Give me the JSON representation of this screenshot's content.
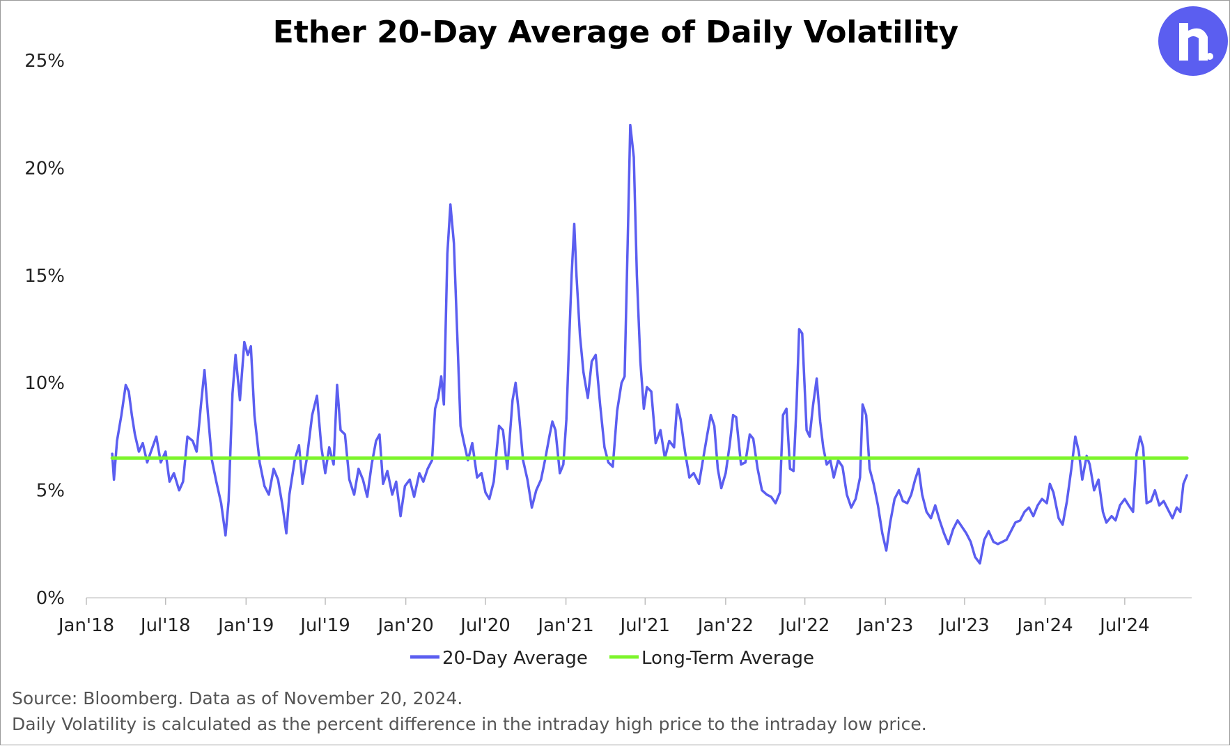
{
  "notes": {
    "source": "Source: Bloomberg. Data as of November 20, 2024.",
    "definition": "Daily Volatility is calculated as the percent difference in the intraday high price to the intraday low price."
  },
  "logo": {
    "icon": "r-letter-logo-icon",
    "color": "#5b5ef0"
  },
  "chart_data": {
    "type": "line",
    "title": "Ether 20-Day Average of Daily Volatility",
    "xlabel": "",
    "ylabel": "",
    "ylim": [
      0,
      25
    ],
    "yticks": [
      "0%",
      "5%",
      "10%",
      "15%",
      "20%",
      "25%"
    ],
    "xticks": [
      "Jan'18",
      "Jul'18",
      "Jan'19",
      "Jul'19",
      "Jan'20",
      "Jul'20",
      "Jan'21",
      "Jul'21",
      "Jan'22",
      "Jul'22",
      "Jan'23",
      "Jul'23",
      "Jan'24",
      "Jul'24"
    ],
    "grid": false,
    "legend_position": "bottom",
    "series": [
      {
        "name": "20-Day Average",
        "color": "#5b5ef0",
        "points": [
          [
            "2018-03-01",
            6.7
          ],
          [
            "2018-03-05",
            5.5
          ],
          [
            "2018-03-12",
            7.3
          ],
          [
            "2018-03-22",
            8.5
          ],
          [
            "2018-04-01",
            9.9
          ],
          [
            "2018-04-08",
            9.6
          ],
          [
            "2018-04-15",
            8.5
          ],
          [
            "2018-04-22",
            7.6
          ],
          [
            "2018-05-01",
            6.8
          ],
          [
            "2018-05-10",
            7.2
          ],
          [
            "2018-05-20",
            6.3
          ],
          [
            "2018-06-01",
            7.0
          ],
          [
            "2018-06-10",
            7.5
          ],
          [
            "2018-06-20",
            6.3
          ],
          [
            "2018-07-01",
            6.8
          ],
          [
            "2018-07-10",
            5.4
          ],
          [
            "2018-07-20",
            5.8
          ],
          [
            "2018-08-01",
            5.0
          ],
          [
            "2018-08-10",
            5.4
          ],
          [
            "2018-08-20",
            7.5
          ],
          [
            "2018-09-01",
            7.3
          ],
          [
            "2018-09-10",
            6.8
          ],
          [
            "2018-09-20",
            9.0
          ],
          [
            "2018-09-28",
            10.6
          ],
          [
            "2018-10-06",
            8.5
          ],
          [
            "2018-10-15",
            6.4
          ],
          [
            "2018-10-25",
            5.4
          ],
          [
            "2018-11-05",
            4.4
          ],
          [
            "2018-11-15",
            2.9
          ],
          [
            "2018-11-22",
            4.5
          ],
          [
            "2018-12-01",
            9.5
          ],
          [
            "2018-12-08",
            11.3
          ],
          [
            "2018-12-18",
            9.2
          ],
          [
            "2018-12-28",
            11.9
          ],
          [
            "2019-01-05",
            11.3
          ],
          [
            "2019-01-12",
            11.7
          ],
          [
            "2019-01-20",
            8.5
          ],
          [
            "2019-02-01",
            6.3
          ],
          [
            "2019-02-12",
            5.2
          ],
          [
            "2019-02-22",
            4.8
          ],
          [
            "2019-03-05",
            6.0
          ],
          [
            "2019-03-15",
            5.5
          ],
          [
            "2019-03-25",
            4.3
          ],
          [
            "2019-04-03",
            3.0
          ],
          [
            "2019-04-10",
            4.8
          ],
          [
            "2019-04-22",
            6.4
          ],
          [
            "2019-05-02",
            7.1
          ],
          [
            "2019-05-10",
            5.3
          ],
          [
            "2019-05-20",
            6.5
          ],
          [
            "2019-06-01",
            8.5
          ],
          [
            "2019-06-12",
            9.4
          ],
          [
            "2019-06-22",
            7.0
          ],
          [
            "2019-07-01",
            5.8
          ],
          [
            "2019-07-10",
            7.0
          ],
          [
            "2019-07-20",
            6.2
          ],
          [
            "2019-07-28",
            9.9
          ],
          [
            "2019-08-05",
            7.8
          ],
          [
            "2019-08-15",
            7.6
          ],
          [
            "2019-08-25",
            5.5
          ],
          [
            "2019-09-05",
            4.8
          ],
          [
            "2019-09-15",
            6.0
          ],
          [
            "2019-09-25",
            5.5
          ],
          [
            "2019-10-05",
            4.7
          ],
          [
            "2019-10-15",
            6.2
          ],
          [
            "2019-10-25",
            7.3
          ],
          [
            "2019-11-02",
            7.6
          ],
          [
            "2019-11-10",
            5.3
          ],
          [
            "2019-11-20",
            5.9
          ],
          [
            "2019-12-01",
            4.8
          ],
          [
            "2019-12-10",
            5.4
          ],
          [
            "2019-12-20",
            3.8
          ],
          [
            "2019-12-30",
            5.2
          ],
          [
            "2020-01-10",
            5.5
          ],
          [
            "2020-01-20",
            4.7
          ],
          [
            "2020-02-01",
            5.8
          ],
          [
            "2020-02-10",
            5.4
          ],
          [
            "2020-02-20",
            6.0
          ],
          [
            "2020-03-01",
            6.4
          ],
          [
            "2020-03-08",
            8.8
          ],
          [
            "2020-03-15",
            9.3
          ],
          [
            "2020-03-22",
            10.3
          ],
          [
            "2020-03-28",
            9.0
          ],
          [
            "2020-04-05",
            16.0
          ],
          [
            "2020-04-12",
            18.3
          ],
          [
            "2020-04-20",
            16.5
          ],
          [
            "2020-04-28",
            12.0
          ],
          [
            "2020-05-05",
            8.0
          ],
          [
            "2020-05-12",
            7.3
          ],
          [
            "2020-05-22",
            6.4
          ],
          [
            "2020-06-01",
            7.2
          ],
          [
            "2020-06-12",
            5.6
          ],
          [
            "2020-06-22",
            5.8
          ],
          [
            "2020-07-01",
            4.9
          ],
          [
            "2020-07-10",
            4.6
          ],
          [
            "2020-07-20",
            5.4
          ],
          [
            "2020-08-01",
            8.0
          ],
          [
            "2020-08-10",
            7.8
          ],
          [
            "2020-08-20",
            6.0
          ],
          [
            "2020-09-01",
            9.2
          ],
          [
            "2020-09-08",
            10.0
          ],
          [
            "2020-09-15",
            8.7
          ],
          [
            "2020-09-25",
            6.4
          ],
          [
            "2020-10-05",
            5.5
          ],
          [
            "2020-10-15",
            4.2
          ],
          [
            "2020-10-25",
            5.0
          ],
          [
            "2020-11-05",
            5.5
          ],
          [
            "2020-11-15",
            6.5
          ],
          [
            "2020-11-25",
            7.6
          ],
          [
            "2020-12-01",
            8.2
          ],
          [
            "2020-12-08",
            7.8
          ],
          [
            "2020-12-18",
            5.8
          ],
          [
            "2020-12-26",
            6.2
          ],
          [
            "2021-01-02",
            8.3
          ],
          [
            "2021-01-08",
            11.8
          ],
          [
            "2021-01-14",
            15.0
          ],
          [
            "2021-01-20",
            17.4
          ],
          [
            "2021-01-25",
            15.0
          ],
          [
            "2021-02-02",
            12.2
          ],
          [
            "2021-02-10",
            10.5
          ],
          [
            "2021-02-20",
            9.3
          ],
          [
            "2021-03-01",
            11.0
          ],
          [
            "2021-03-10",
            11.3
          ],
          [
            "2021-03-20",
            9.0
          ],
          [
            "2021-03-30",
            7.0
          ],
          [
            "2021-04-08",
            6.3
          ],
          [
            "2021-04-18",
            6.1
          ],
          [
            "2021-04-28",
            8.7
          ],
          [
            "2021-05-08",
            10.0
          ],
          [
            "2021-05-15",
            10.3
          ],
          [
            "2021-05-22",
            16.5
          ],
          [
            "2021-05-28",
            22.0
          ],
          [
            "2021-06-05",
            20.5
          ],
          [
            "2021-06-12",
            15.0
          ],
          [
            "2021-06-20",
            11.0
          ],
          [
            "2021-06-28",
            8.8
          ],
          [
            "2021-07-05",
            9.8
          ],
          [
            "2021-07-15",
            9.6
          ],
          [
            "2021-07-25",
            7.2
          ],
          [
            "2021-08-05",
            7.8
          ],
          [
            "2021-08-15",
            6.5
          ],
          [
            "2021-08-25",
            7.3
          ],
          [
            "2021-09-05",
            7.0
          ],
          [
            "2021-09-12",
            9.0
          ],
          [
            "2021-09-20",
            8.3
          ],
          [
            "2021-09-30",
            6.8
          ],
          [
            "2021-10-10",
            5.6
          ],
          [
            "2021-10-20",
            5.8
          ],
          [
            "2021-11-01",
            5.3
          ],
          [
            "2021-11-10",
            6.4
          ],
          [
            "2021-11-20",
            7.6
          ],
          [
            "2021-11-28",
            8.5
          ],
          [
            "2021-12-06",
            8.0
          ],
          [
            "2021-12-14",
            6.0
          ],
          [
            "2021-12-22",
            5.1
          ],
          [
            "2022-01-01",
            5.8
          ],
          [
            "2022-01-10",
            7.1
          ],
          [
            "2022-01-18",
            8.5
          ],
          [
            "2022-01-25",
            8.4
          ],
          [
            "2022-02-05",
            6.2
          ],
          [
            "2022-02-15",
            6.3
          ],
          [
            "2022-02-25",
            7.6
          ],
          [
            "2022-03-05",
            7.4
          ],
          [
            "2022-03-15",
            6.0
          ],
          [
            "2022-03-25",
            5.0
          ],
          [
            "2022-04-05",
            4.8
          ],
          [
            "2022-04-15",
            4.7
          ],
          [
            "2022-04-25",
            4.4
          ],
          [
            "2022-05-05",
            4.9
          ],
          [
            "2022-05-12",
            8.5
          ],
          [
            "2022-05-20",
            8.8
          ],
          [
            "2022-05-28",
            6.0
          ],
          [
            "2022-06-05",
            5.9
          ],
          [
            "2022-06-12",
            9.0
          ],
          [
            "2022-06-18",
            12.5
          ],
          [
            "2022-06-25",
            12.3
          ],
          [
            "2022-07-05",
            7.8
          ],
          [
            "2022-07-12",
            7.5
          ],
          [
            "2022-07-20",
            9.0
          ],
          [
            "2022-07-28",
            10.2
          ],
          [
            "2022-08-05",
            8.2
          ],
          [
            "2022-08-12",
            7.0
          ],
          [
            "2022-08-20",
            6.2
          ],
          [
            "2022-08-28",
            6.4
          ],
          [
            "2022-09-05",
            5.6
          ],
          [
            "2022-09-15",
            6.4
          ],
          [
            "2022-09-25",
            6.1
          ],
          [
            "2022-10-05",
            4.8
          ],
          [
            "2022-10-15",
            4.2
          ],
          [
            "2022-10-25",
            4.6
          ],
          [
            "2022-11-04",
            5.6
          ],
          [
            "2022-11-10",
            9.0
          ],
          [
            "2022-11-18",
            8.5
          ],
          [
            "2022-11-26",
            6.0
          ],
          [
            "2022-12-05",
            5.3
          ],
          [
            "2022-12-15",
            4.3
          ],
          [
            "2022-12-25",
            3.0
          ],
          [
            "2023-01-03",
            2.2
          ],
          [
            "2023-01-12",
            3.5
          ],
          [
            "2023-01-22",
            4.6
          ],
          [
            "2023-02-01",
            5.0
          ],
          [
            "2023-02-10",
            4.5
          ],
          [
            "2023-02-20",
            4.4
          ],
          [
            "2023-03-01",
            4.8
          ],
          [
            "2023-03-10",
            5.5
          ],
          [
            "2023-03-18",
            6.0
          ],
          [
            "2023-03-26",
            4.8
          ],
          [
            "2023-04-05",
            4.0
          ],
          [
            "2023-04-15",
            3.7
          ],
          [
            "2023-04-25",
            4.3
          ],
          [
            "2023-05-05",
            3.6
          ],
          [
            "2023-05-15",
            3.0
          ],
          [
            "2023-05-25",
            2.5
          ],
          [
            "2023-06-05",
            3.2
          ],
          [
            "2023-06-15",
            3.6
          ],
          [
            "2023-06-25",
            3.3
          ],
          [
            "2023-07-05",
            3.0
          ],
          [
            "2023-07-15",
            2.6
          ],
          [
            "2023-07-25",
            1.9
          ],
          [
            "2023-08-05",
            1.6
          ],
          [
            "2023-08-15",
            2.7
          ],
          [
            "2023-08-25",
            3.1
          ],
          [
            "2023-09-05",
            2.6
          ],
          [
            "2023-09-15",
            2.5
          ],
          [
            "2023-09-25",
            2.6
          ],
          [
            "2023-10-05",
            2.7
          ],
          [
            "2023-10-15",
            3.1
          ],
          [
            "2023-10-25",
            3.5
          ],
          [
            "2023-11-05",
            3.6
          ],
          [
            "2023-11-15",
            4.0
          ],
          [
            "2023-11-25",
            4.2
          ],
          [
            "2023-12-05",
            3.8
          ],
          [
            "2023-12-15",
            4.3
          ],
          [
            "2023-12-25",
            4.6
          ],
          [
            "2024-01-05",
            4.4
          ],
          [
            "2024-01-12",
            5.3
          ],
          [
            "2024-01-20",
            4.9
          ],
          [
            "2024-02-01",
            3.7
          ],
          [
            "2024-02-10",
            3.4
          ],
          [
            "2024-02-20",
            4.5
          ],
          [
            "2024-03-01",
            6.0
          ],
          [
            "2024-03-10",
            7.5
          ],
          [
            "2024-03-18",
            6.8
          ],
          [
            "2024-03-26",
            5.5
          ],
          [
            "2024-04-05",
            6.6
          ],
          [
            "2024-04-12",
            6.2
          ],
          [
            "2024-04-22",
            5.0
          ],
          [
            "2024-05-02",
            5.5
          ],
          [
            "2024-05-12",
            4.0
          ],
          [
            "2024-05-20",
            3.5
          ],
          [
            "2024-06-01",
            3.8
          ],
          [
            "2024-06-10",
            3.6
          ],
          [
            "2024-06-20",
            4.3
          ],
          [
            "2024-07-01",
            4.6
          ],
          [
            "2024-07-10",
            4.3
          ],
          [
            "2024-07-20",
            4.0
          ],
          [
            "2024-07-28",
            6.7
          ],
          [
            "2024-08-05",
            7.5
          ],
          [
            "2024-08-12",
            7.0
          ],
          [
            "2024-08-20",
            4.4
          ],
          [
            "2024-08-30",
            4.5
          ],
          [
            "2024-09-08",
            5.0
          ],
          [
            "2024-09-18",
            4.3
          ],
          [
            "2024-09-28",
            4.5
          ],
          [
            "2024-10-08",
            4.1
          ],
          [
            "2024-10-18",
            3.7
          ],
          [
            "2024-10-28",
            4.2
          ],
          [
            "2024-11-05",
            4.0
          ],
          [
            "2024-11-12",
            5.3
          ],
          [
            "2024-11-20",
            5.7
          ]
        ]
      },
      {
        "name": "Long-Term Average",
        "color": "#7cf52b",
        "points": [
          [
            "2018-03-01",
            6.5
          ],
          [
            "2024-11-20",
            6.5
          ]
        ]
      }
    ]
  }
}
